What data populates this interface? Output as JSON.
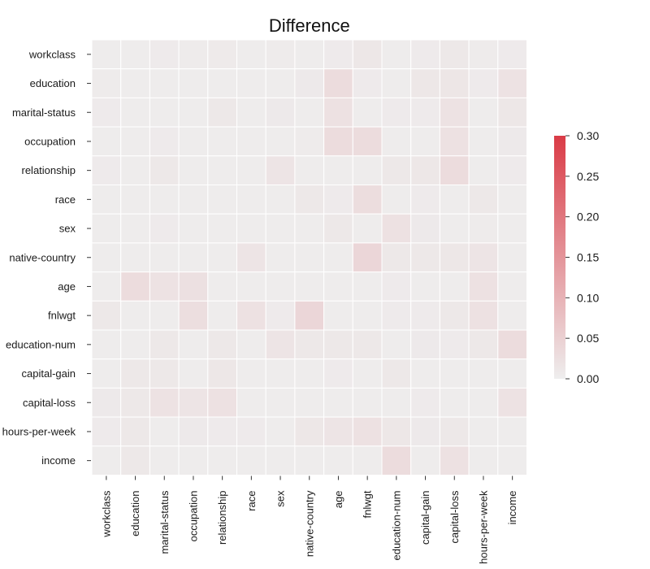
{
  "chart_data": {
    "type": "heatmap",
    "title": "Difference",
    "xlabel": "",
    "ylabel": "",
    "rows": [
      "workclass",
      "education",
      "marital-status",
      "occupation",
      "relationship",
      "race",
      "sex",
      "native-country",
      "age",
      "fnlwgt",
      "education-num",
      "capital-gain",
      "capital-loss",
      "hours-per-week",
      "income"
    ],
    "columns": [
      "workclass",
      "education",
      "marital-status",
      "occupation",
      "relationship",
      "race",
      "sex",
      "native-country",
      "age",
      "fnlwgt",
      "education-num",
      "capital-gain",
      "capital-loss",
      "hours-per-week",
      "income"
    ],
    "values": [
      [
        0.004,
        0.004,
        0.006,
        0.005,
        0.007,
        0.004,
        0.005,
        0.004,
        0.006,
        0.012,
        0.004,
        0.006,
        0.01,
        0.005,
        0.006
      ],
      [
        0.005,
        0.003,
        0.004,
        0.004,
        0.004,
        0.003,
        0.004,
        0.008,
        0.03,
        0.006,
        0.004,
        0.012,
        0.014,
        0.006,
        0.02
      ],
      [
        0.006,
        0.003,
        0.004,
        0.004,
        0.01,
        0.004,
        0.008,
        0.004,
        0.022,
        0.004,
        0.006,
        0.006,
        0.02,
        0.003,
        0.012
      ],
      [
        0.004,
        0.004,
        0.006,
        0.004,
        0.004,
        0.003,
        0.004,
        0.005,
        0.03,
        0.03,
        0.004,
        0.004,
        0.022,
        0.004,
        0.008
      ],
      [
        0.006,
        0.004,
        0.01,
        0.004,
        0.004,
        0.004,
        0.016,
        0.004,
        0.003,
        0.004,
        0.01,
        0.012,
        0.03,
        0.004,
        0.006
      ],
      [
        0.004,
        0.004,
        0.004,
        0.004,
        0.003,
        0.004,
        0.004,
        0.01,
        0.006,
        0.028,
        0.004,
        0.006,
        0.004,
        0.01,
        0.004
      ],
      [
        0.004,
        0.004,
        0.006,
        0.004,
        0.004,
        0.004,
        0.004,
        0.004,
        0.01,
        0.004,
        0.022,
        0.008,
        0.004,
        0.005,
        0.004
      ],
      [
        0.004,
        0.004,
        0.004,
        0.004,
        0.003,
        0.016,
        0.004,
        0.004,
        0.004,
        0.04,
        0.01,
        0.01,
        0.012,
        0.016,
        0.004
      ],
      [
        0.004,
        0.03,
        0.02,
        0.024,
        0.004,
        0.004,
        0.004,
        0.004,
        0.004,
        0.004,
        0.006,
        0.004,
        0.004,
        0.022,
        0.004
      ],
      [
        0.01,
        0.004,
        0.004,
        0.026,
        0.004,
        0.022,
        0.006,
        0.04,
        0.004,
        0.004,
        0.006,
        0.006,
        0.01,
        0.022,
        0.004
      ],
      [
        0.004,
        0.004,
        0.01,
        0.004,
        0.01,
        0.004,
        0.016,
        0.01,
        0.01,
        0.01,
        0.004,
        0.008,
        0.006,
        0.01,
        0.03
      ],
      [
        0.004,
        0.01,
        0.01,
        0.004,
        0.012,
        0.004,
        0.004,
        0.004,
        0.006,
        0.004,
        0.01,
        0.004,
        0.004,
        0.004,
        0.003
      ],
      [
        0.008,
        0.01,
        0.02,
        0.016,
        0.022,
        0.004,
        0.004,
        0.004,
        0.004,
        0.004,
        0.004,
        0.006,
        0.004,
        0.004,
        0.02
      ],
      [
        0.006,
        0.01,
        0.004,
        0.008,
        0.006,
        0.006,
        0.004,
        0.012,
        0.016,
        0.022,
        0.012,
        0.008,
        0.01,
        0.004,
        0.004
      ],
      [
        0.004,
        0.01,
        0.004,
        0.004,
        0.004,
        0.004,
        0.004,
        0.004,
        0.004,
        0.004,
        0.03,
        0.004,
        0.022,
        0.004,
        0.004
      ]
    ],
    "colorbar": {
      "min": 0.0,
      "max": 0.3,
      "ticks": [
        "0.00",
        "0.05",
        "0.10",
        "0.15",
        "0.20",
        "0.25",
        "0.30"
      ],
      "color_low": "#eeeeee",
      "color_high": "#da3b46"
    },
    "grid": false,
    "legend": "colorbar-right"
  }
}
